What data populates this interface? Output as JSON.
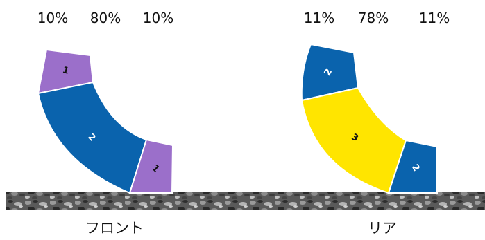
{
  "colors": {
    "purple": "#9b6fca",
    "blue": "#0a63ad",
    "yellow": "#ffe500",
    "ground_dark": "#3a3a3a",
    "ground_light": "#9a9a9a"
  },
  "panels": [
    {
      "id": "front",
      "caption": "フロント",
      "percent_labels": [
        "10%",
        "80%",
        "10%"
      ],
      "segments": [
        {
          "label": "1",
          "share": 10,
          "color": "#9b6fca",
          "text_color": "#111111"
        },
        {
          "label": "2",
          "share": 80,
          "color": "#0a63ad",
          "text_color": "#ffffff"
        },
        {
          "label": "1",
          "share": 10,
          "color": "#9b6fca",
          "text_color": "#111111"
        }
      ]
    },
    {
      "id": "rear",
      "caption": "リア",
      "percent_labels": [
        "11%",
        "78%",
        "11%"
      ],
      "segments": [
        {
          "label": "2",
          "share": 11,
          "color": "#0a63ad",
          "text_color": "#ffffff"
        },
        {
          "label": "3",
          "share": 78,
          "color": "#ffe500",
          "text_color": "#111111"
        },
        {
          "label": "2",
          "share": 11,
          "color": "#0a63ad",
          "text_color": "#ffffff"
        }
      ]
    }
  ]
}
